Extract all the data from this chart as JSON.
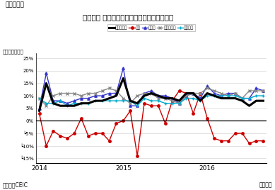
{
  "title": "ベトナム 鉱工業生産指数（業種別）の伸び率",
  "subtitle": "（図表６）",
  "ylabel": "（前年同月比）",
  "xlabel_right": "（月次）",
  "source": "（資料）CEIC",
  "ylim": [
    -0.17,
    0.27
  ],
  "yticks": [
    -0.15,
    -0.1,
    -0.05,
    0.0,
    0.05,
    0.1,
    0.15,
    0.2,
    0.25
  ],
  "ytick_labels": [
    "┕15%",
    "┕10%",
    "┕5%",
    "0%",
    "5%",
    "10%",
    "15%",
    "20%",
    "25%"
  ],
  "series_order": [
    "鉱工業生産",
    "鉱業",
    "製造業",
    "電気ガス業",
    "水供給業"
  ],
  "series": {
    "鉱工業生産": {
      "color": "#000000",
      "linewidth": 2.2,
      "marker": "None",
      "markersize": 0,
      "linestyle": "-",
      "values": [
        0.04,
        0.15,
        0.07,
        0.06,
        0.06,
        0.06,
        0.07,
        0.07,
        0.08,
        0.08,
        0.09,
        0.1,
        0.17,
        0.08,
        0.07,
        0.1,
        0.11,
        0.1,
        0.09,
        0.09,
        0.08,
        0.11,
        0.11,
        0.08,
        0.11,
        0.1,
        0.09,
        0.09,
        0.09,
        0.08,
        0.06,
        0.08,
        0.08
      ]
    },
    "鉱業": {
      "color": "#cc0000",
      "linewidth": 1.0,
      "marker": "o",
      "markersize": 2.5,
      "linestyle": "-",
      "values": [
        0.03,
        -0.1,
        -0.04,
        -0.06,
        -0.07,
        -0.05,
        0.01,
        -0.06,
        -0.05,
        -0.05,
        -0.08,
        -0.01,
        0.0,
        0.04,
        -0.14,
        0.07,
        0.06,
        0.06,
        -0.01,
        0.08,
        0.12,
        0.11,
        0.03,
        0.11,
        0.01,
        -0.07,
        -0.08,
        -0.08,
        -0.05,
        -0.05,
        -0.09,
        -0.08,
        -0.08
      ]
    },
    "製造業": {
      "color": "#3333cc",
      "linewidth": 1.0,
      "marker": "^",
      "markersize": 2.5,
      "linestyle": "-",
      "values": [
        0.05,
        0.19,
        0.08,
        0.08,
        0.07,
        0.08,
        0.09,
        0.09,
        0.1,
        0.1,
        0.11,
        0.11,
        0.21,
        0.06,
        0.06,
        0.11,
        0.12,
        0.1,
        0.1,
        0.09,
        0.07,
        0.1,
        0.11,
        0.09,
        0.14,
        0.11,
        0.1,
        0.11,
        0.11,
        0.09,
        0.09,
        0.13,
        0.12
      ]
    },
    "電気ガス業": {
      "color": "#888888",
      "linewidth": 1.0,
      "marker": "x",
      "markersize": 2.5,
      "linestyle": "-",
      "values": [
        0.09,
        0.06,
        0.1,
        0.11,
        0.11,
        0.11,
        0.1,
        0.11,
        0.11,
        0.12,
        0.13,
        0.12,
        0.09,
        0.07,
        0.1,
        0.11,
        0.11,
        0.09,
        0.09,
        0.08,
        0.07,
        0.1,
        0.11,
        0.11,
        0.13,
        0.12,
        0.11,
        0.1,
        0.11,
        0.09,
        0.12,
        0.12,
        0.12
      ]
    },
    "水供給業": {
      "color": "#00aacc",
      "linewidth": 1.0,
      "marker": "+",
      "markersize": 3.5,
      "linestyle": "-",
      "values": [
        0.09,
        0.07,
        0.07,
        0.08,
        0.06,
        0.07,
        0.07,
        0.07,
        0.08,
        0.08,
        0.08,
        0.08,
        0.08,
        0.08,
        0.06,
        0.09,
        0.08,
        0.08,
        0.07,
        0.07,
        0.07,
        0.09,
        0.09,
        0.08,
        0.1,
        0.1,
        0.1,
        0.1,
        0.1,
        0.09,
        0.09,
        0.1,
        0.1
      ]
    }
  },
  "n_points": 33,
  "xtick_positions": [
    0,
    12,
    24
  ],
  "xtick_labels": [
    "2014",
    "2015",
    "2016"
  ]
}
